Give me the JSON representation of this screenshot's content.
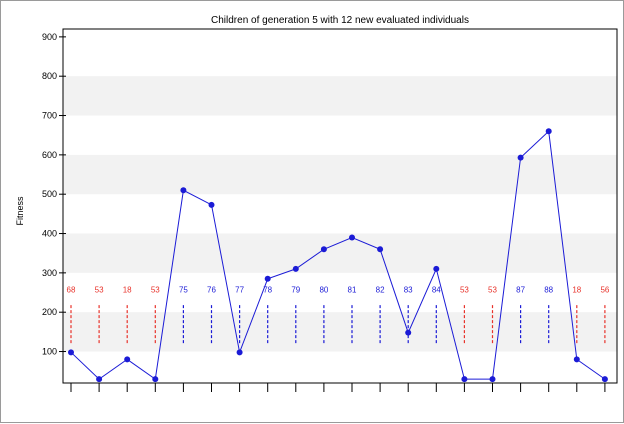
{
  "chart_data": {
    "type": "line",
    "title": "Children of generation 5 with 12 new evaluated individuals",
    "xlabel": "",
    "ylabel": "Fitness",
    "ylim": [
      20,
      920
    ],
    "yticks": [
      100,
      200,
      300,
      400,
      500,
      600,
      700,
      800,
      900
    ],
    "grid": "alternating horizontal bands",
    "series": [
      {
        "values": [
          98,
          30,
          80,
          30,
          510,
          473,
          98,
          285,
          310,
          360,
          390,
          360,
          148,
          310,
          30,
          30,
          593,
          660,
          80,
          30
        ]
      }
    ],
    "individual_labels": [
      "68",
      "53",
      "18",
      "53",
      "75",
      "76",
      "77",
      "78",
      "79",
      "80",
      "81",
      "82",
      "83",
      "84",
      "53",
      "53",
      "87",
      "88",
      "18",
      "56"
    ],
    "label_colors": [
      "#e8322a",
      "#e8322a",
      "#e8322a",
      "#e8322a",
      "#1b1bd6",
      "#1b1bd6",
      "#1b1bd6",
      "#1b1bd6",
      "#1b1bd6",
      "#1b1bd6",
      "#1b1bd6",
      "#1b1bd6",
      "#1b1bd6",
      "#1b1bd6",
      "#e8322a",
      "#e8322a",
      "#1b1bd6",
      "#1b1bd6",
      "#e8322a",
      "#e8322a"
    ],
    "colors": {
      "old_individual": "#e8322a",
      "new_individual": "#1b1bd6",
      "line": "#1b1bd6",
      "band": "#f2f2f2"
    }
  }
}
